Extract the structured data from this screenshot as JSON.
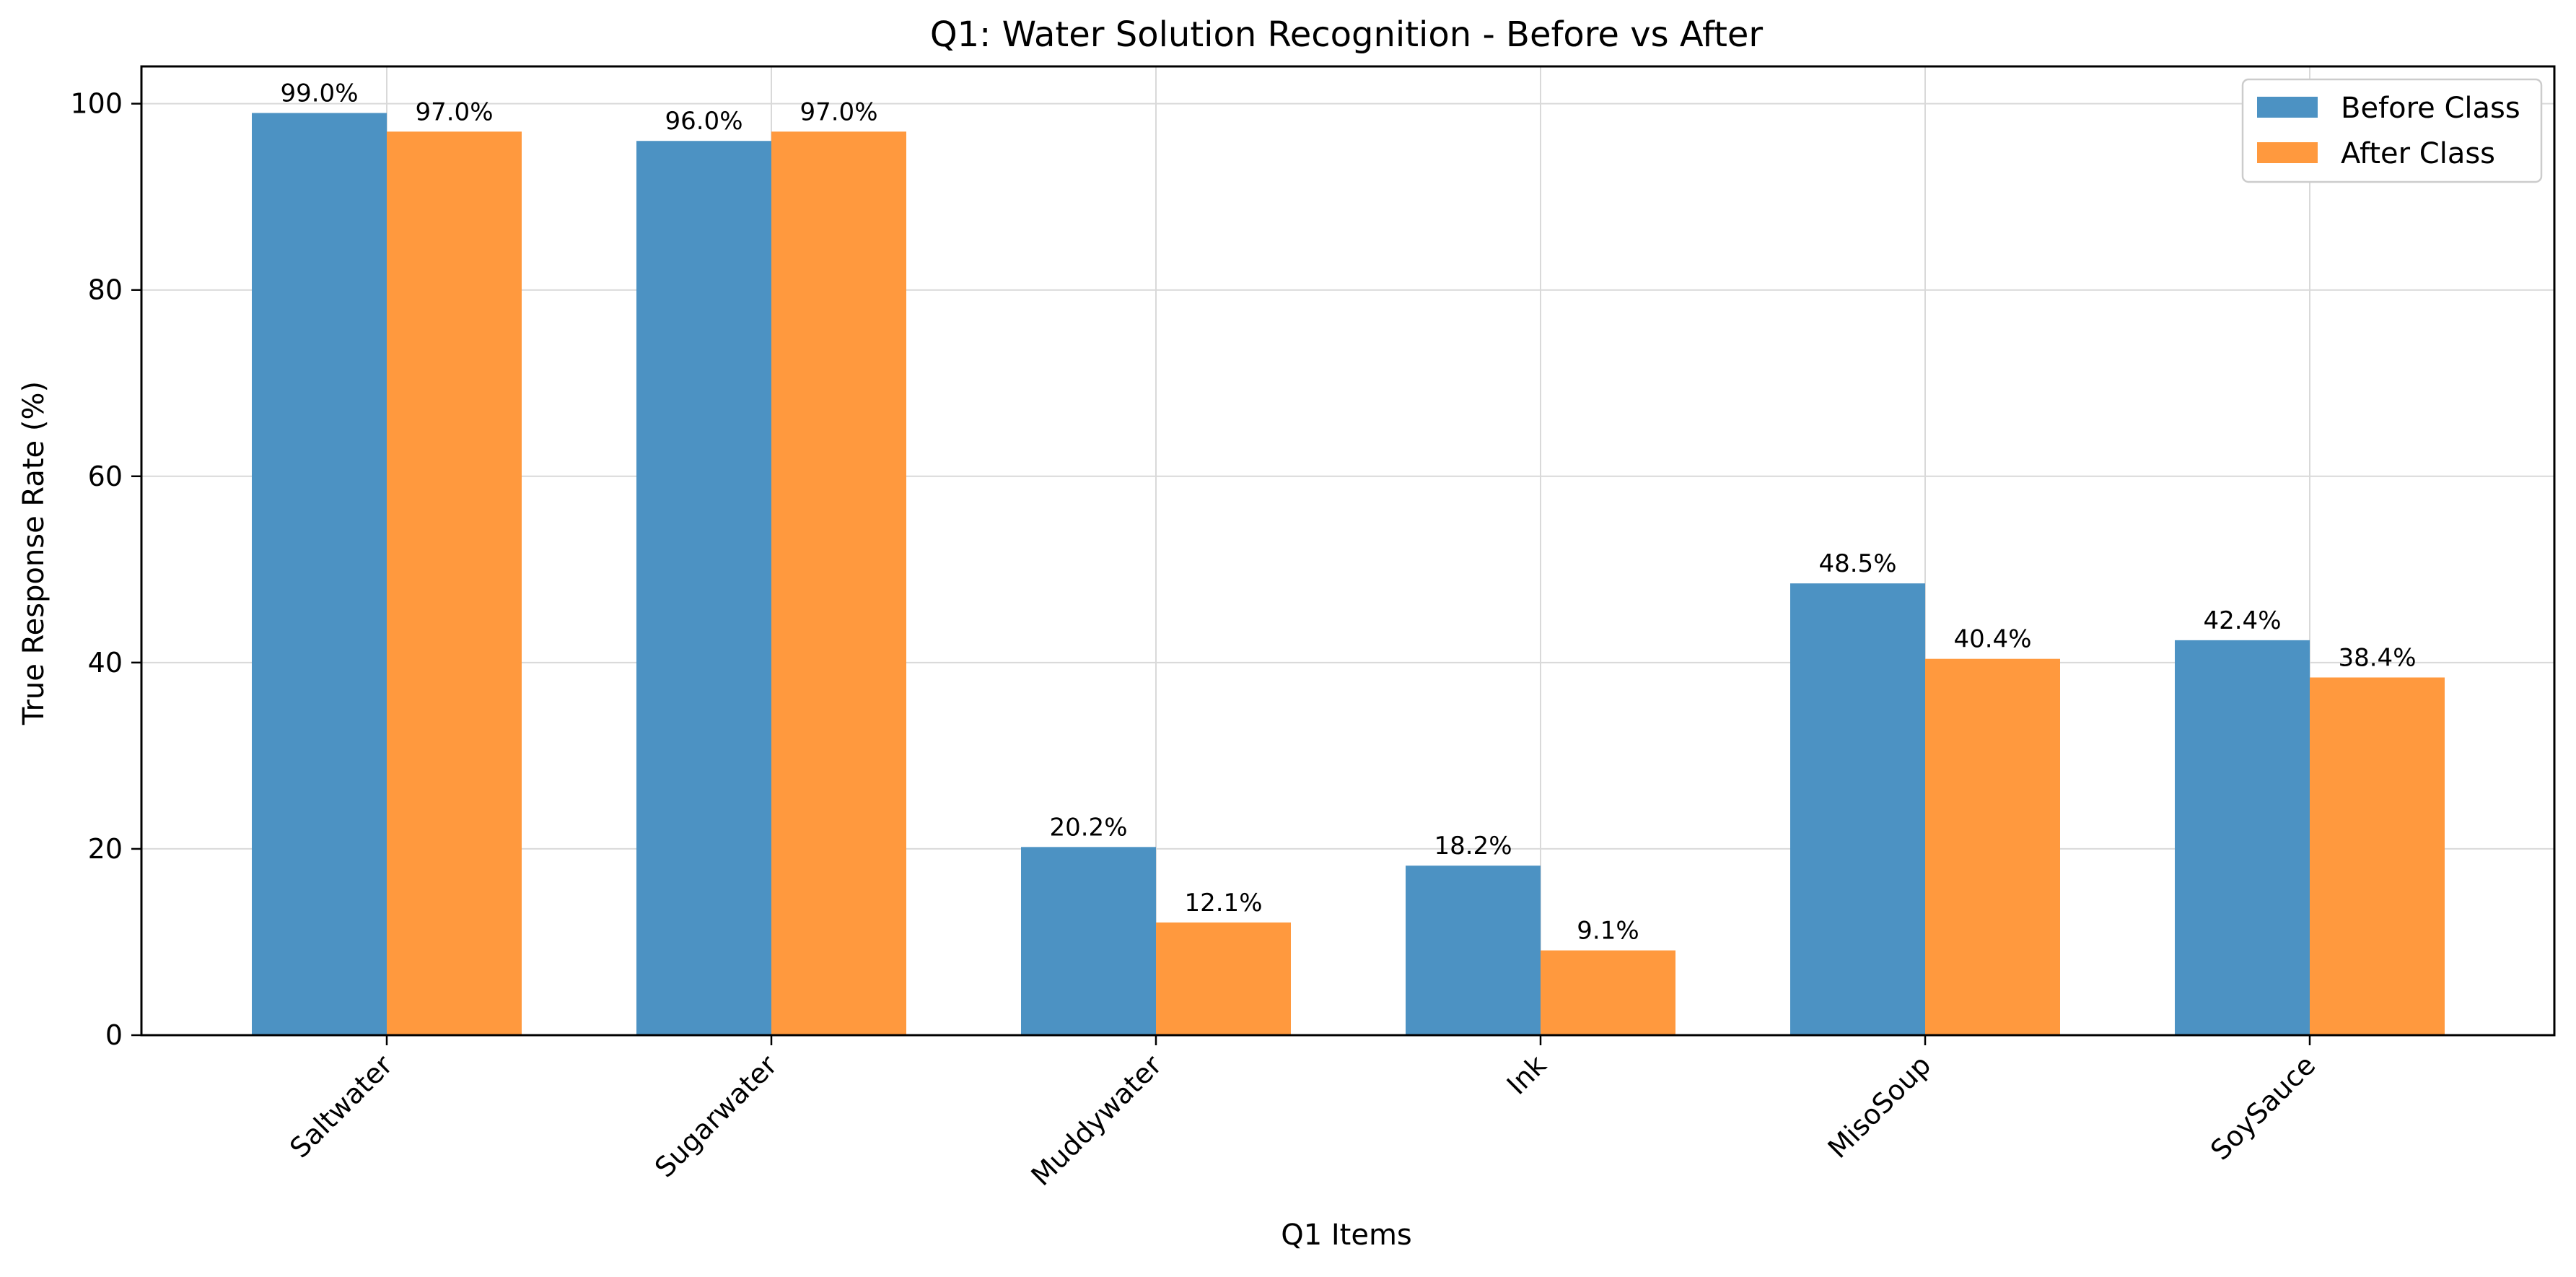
{
  "chart_data": {
    "type": "bar",
    "title": "Q1: Water Solution Recognition - Before vs After",
    "xlabel": "Q1 Items",
    "ylabel": "True Response Rate (%)",
    "categories": [
      "Saltwater",
      "Sugarwater",
      "Muddywater",
      "Ink",
      "MisoSoup",
      "SoySauce"
    ],
    "series": [
      {
        "name": "Before Class",
        "color": "#4c92c3",
        "values": [
          99.0,
          96.0,
          20.2,
          18.2,
          48.5,
          42.4
        ],
        "labels": [
          "99.0%",
          "96.0%",
          "20.2%",
          "18.2%",
          "48.5%",
          "42.4%"
        ]
      },
      {
        "name": "After Class",
        "color": "#ff993e",
        "values": [
          97.0,
          97.0,
          12.1,
          9.1,
          40.4,
          38.4
        ],
        "labels": [
          "97.0%",
          "97.0%",
          "12.1%",
          "9.1%",
          "40.4%",
          "38.4%"
        ]
      }
    ],
    "ylim": [
      0,
      104
    ],
    "yticks": [
      0,
      20,
      40,
      60,
      80,
      100
    ],
    "grid": true,
    "legend_position": "top-right"
  }
}
